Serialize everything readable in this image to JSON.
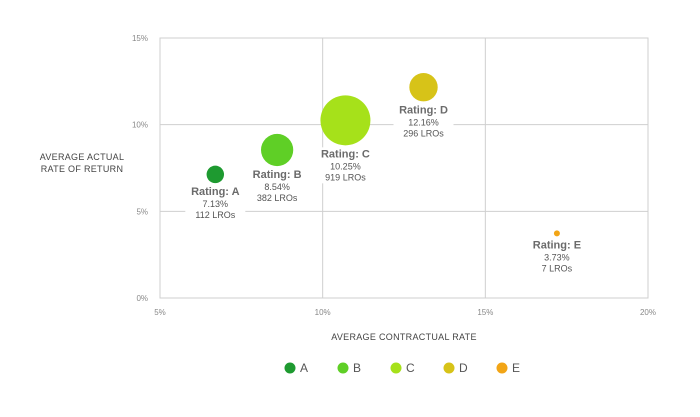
{
  "chart_data": {
    "type": "scatter",
    "xlabel": "AVERAGE CONTRACTUAL RATE",
    "ylabel": [
      "AVERAGE ACTUAL",
      "RATE OF RETURN"
    ],
    "xlim": [
      5,
      20
    ],
    "ylim": [
      0,
      15
    ],
    "x_ticks": [
      5,
      10,
      15,
      20
    ],
    "x_tick_labels": [
      "5%",
      "10%",
      "15%",
      "20%"
    ],
    "y_ticks": [
      0,
      5,
      10,
      15
    ],
    "y_tick_labels": [
      "0%",
      "5%",
      "10%",
      "15%"
    ],
    "grid": true,
    "legend_position": "bottom",
    "series": [
      {
        "name": "A",
        "color": "#1e9a30",
        "x": 6.7,
        "y": 7.13,
        "lros": 112,
        "label": [
          "Rating: A",
          "7.13%",
          "112 LROs"
        ]
      },
      {
        "name": "B",
        "color": "#5fcf26",
        "x": 8.6,
        "y": 8.54,
        "lros": 382,
        "label": [
          "Rating: B",
          "8.54%",
          "382 LROs"
        ]
      },
      {
        "name": "C",
        "color": "#a6e11a",
        "x": 10.7,
        "y": 10.25,
        "lros": 919,
        "label": [
          "Rating: C",
          "10.25%",
          "919 LROs"
        ]
      },
      {
        "name": "D",
        "color": "#d7c318",
        "x": 13.1,
        "y": 12.16,
        "lros": 296,
        "label": [
          "Rating: D",
          "12.16%",
          "296 LROs"
        ]
      },
      {
        "name": "E",
        "color": "#f2a516",
        "x": 17.2,
        "y": 3.73,
        "lros": 7,
        "label": [
          "Rating: E",
          "3.73%",
          "7 LROs"
        ]
      }
    ]
  }
}
